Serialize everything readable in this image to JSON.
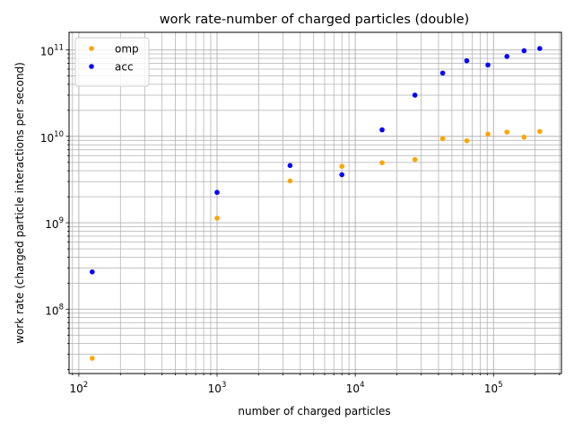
{
  "chart_data": {
    "type": "scatter",
    "title": "work rate-number of charged particles (double)",
    "xlabel": "number of charged particles",
    "ylabel": "work rate (charged particle interactions per second)",
    "xscale": "log",
    "yscale": "log",
    "xlim": [
      85,
      310000
    ],
    "ylim": [
      18000000,
      160000000000
    ],
    "grid": "major and minor",
    "legend_position": "top-left",
    "x_ticks": [
      {
        "base": "10",
        "exp": "2",
        "value": 100
      },
      {
        "base": "10",
        "exp": "3",
        "value": 1000
      },
      {
        "base": "10",
        "exp": "4",
        "value": 10000
      },
      {
        "base": "10",
        "exp": "5",
        "value": 100000
      }
    ],
    "y_ticks": [
      {
        "base": "10",
        "exp": "8",
        "value": 100000000
      },
      {
        "base": "10",
        "exp": "9",
        "value": 1000000000
      },
      {
        "base": "10",
        "exp": "10",
        "value": 10000000000
      },
      {
        "base": "10",
        "exp": "11",
        "value": 100000000000
      }
    ],
    "series": [
      {
        "name": "omp",
        "color": "#ffa500",
        "points": [
          {
            "x": 125,
            "y": 27000000
          },
          {
            "x": 1000,
            "y": 1130000000
          },
          {
            "x": 3375,
            "y": 3050000000
          },
          {
            "x": 8000,
            "y": 4500000000
          },
          {
            "x": 15625,
            "y": 4950000000
          },
          {
            "x": 27000,
            "y": 5400000000
          },
          {
            "x": 42875,
            "y": 9400000000
          },
          {
            "x": 64000,
            "y": 8900000000
          },
          {
            "x": 91125,
            "y": 10600000000
          },
          {
            "x": 125000,
            "y": 11200000000
          },
          {
            "x": 166375,
            "y": 9800000000
          },
          {
            "x": 216000,
            "y": 11400000000
          }
        ]
      },
      {
        "name": "acc",
        "color": "#0000ff",
        "points": [
          {
            "x": 125,
            "y": 270000000
          },
          {
            "x": 1000,
            "y": 2250000000
          },
          {
            "x": 3375,
            "y": 4600000000
          },
          {
            "x": 8000,
            "y": 3600000000
          },
          {
            "x": 15625,
            "y": 11900000000
          },
          {
            "x": 27000,
            "y": 30000000000
          },
          {
            "x": 42875,
            "y": 54000000000
          },
          {
            "x": 64000,
            "y": 75000000000
          },
          {
            "x": 91125,
            "y": 67000000000
          },
          {
            "x": 125000,
            "y": 84000000000
          },
          {
            "x": 166375,
            "y": 98000000000
          },
          {
            "x": 216000,
            "y": 104000000000
          }
        ]
      }
    ]
  }
}
